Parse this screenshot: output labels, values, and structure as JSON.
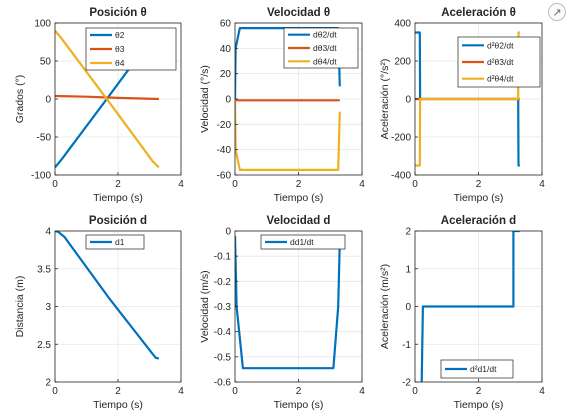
{
  "toolbar": {
    "export_icon": "export-arrow-icon",
    "export_glyph": "↗"
  },
  "colors": {
    "blue": "#0072BD",
    "orange": "#D95319",
    "yellow": "#EDB120",
    "axis": "#262626",
    "grid": "#e6e6e6"
  },
  "chart_data": [
    {
      "id": "pos-theta",
      "type": "line",
      "title": "Posición  θ",
      "xlabel": "Tiempo (s)",
      "ylabel": "Grados (°)",
      "xlim": [
        0,
        4
      ],
      "ylim": [
        -100,
        100
      ],
      "xticks": [
        0,
        2,
        4
      ],
      "yticks": [
        -100,
        -50,
        0,
        50,
        100
      ],
      "legend": "top-right",
      "series": [
        {
          "name": "θ2",
          "color": "#0072BD",
          "x": [
            0,
            0.2,
            1.7,
            3.1,
            3.3
          ],
          "y": [
            -90,
            -80,
            3,
            82,
            90
          ]
        },
        {
          "name": "θ3",
          "color": "#D95319",
          "x": [
            0,
            1,
            2,
            3.3
          ],
          "y": [
            4,
            3,
            1.5,
            0
          ]
        },
        {
          "name": "θ4",
          "color": "#EDB120",
          "x": [
            0,
            0.2,
            1.7,
            3.1,
            3.3
          ],
          "y": [
            90,
            80,
            -3,
            -82,
            -90
          ]
        }
      ]
    },
    {
      "id": "vel-theta",
      "type": "line",
      "title": "Velocidad  θ",
      "xlabel": "Tiempo (s)",
      "ylabel": "Velocidad (°/s)",
      "xlim": [
        0,
        4
      ],
      "ylim": [
        -60,
        60
      ],
      "xticks": [
        0,
        2,
        4
      ],
      "yticks": [
        -60,
        -40,
        -20,
        0,
        20,
        40,
        60
      ],
      "legend": "top-right",
      "series": [
        {
          "name": "dθ2/dt",
          "color": "#0072BD",
          "x": [
            0,
            0.02,
            0.15,
            3.25,
            3.3
          ],
          "y": [
            0,
            40,
            56,
            56,
            10
          ]
        },
        {
          "name": "dθ3/dt",
          "color": "#D95319",
          "x": [
            0,
            3.3
          ],
          "y": [
            -1,
            -1
          ]
        },
        {
          "name": "dθ4/dt",
          "color": "#EDB120",
          "x": [
            0,
            0.02,
            0.15,
            3.25,
            3.3
          ],
          "y": [
            0,
            -40,
            -56,
            -56,
            -10
          ]
        }
      ]
    },
    {
      "id": "acc-theta",
      "type": "line",
      "title": "Aceleración  θ",
      "xlabel": "Tiempo (s)",
      "ylabel": "Aceleración (°/s²)",
      "xlim": [
        0,
        4
      ],
      "ylim": [
        -400,
        400
      ],
      "xticks": [
        0,
        2,
        4
      ],
      "yticks": [
        -400,
        -200,
        0,
        200,
        400
      ],
      "legend": "top-right",
      "series": [
        {
          "name": "d²θ2/dt",
          "color": "#0072BD",
          "x": [
            0,
            0.15,
            0.16,
            3.25,
            3.26,
            3.3
          ],
          "y": [
            350,
            350,
            0,
            0,
            -350,
            -350
          ]
        },
        {
          "name": "d²θ3/dt",
          "color": "#D95319",
          "x": [
            0,
            3.3
          ],
          "y": [
            0,
            0
          ]
        },
        {
          "name": "d²θ4/dt",
          "color": "#EDB120",
          "x": [
            0,
            0.15,
            0.16,
            3.25,
            3.26,
            3.3
          ],
          "y": [
            -350,
            -350,
            0,
            0,
            350,
            350
          ]
        }
      ]
    },
    {
      "id": "pos-d",
      "type": "line",
      "title": "Posición d",
      "xlabel": "Tiempo (s)",
      "ylabel": "Distancia (m)",
      "xlim": [
        0,
        4
      ],
      "ylim": [
        2,
        4
      ],
      "xticks": [
        0,
        2,
        4
      ],
      "yticks": [
        2,
        2.5,
        3,
        3.5,
        4
      ],
      "legend": "top-right",
      "series": [
        {
          "name": "d1",
          "color": "#0072BD",
          "x": [
            0,
            0.1,
            0.3,
            1.7,
            3.1,
            3.2,
            3.3
          ],
          "y": [
            4,
            3.99,
            3.92,
            3.12,
            2.37,
            2.32,
            2.31
          ]
        }
      ]
    },
    {
      "id": "vel-d",
      "type": "line",
      "title": "Velocidad d",
      "xlabel": "Tiempo (s)",
      "ylabel": "Velocidad (m/s)",
      "xlim": [
        0,
        4
      ],
      "ylim": [
        -0.6,
        0
      ],
      "xticks": [
        0,
        2,
        4
      ],
      "yticks": [
        -0.6,
        -0.5,
        -0.4,
        -0.3,
        -0.2,
        -0.1,
        0
      ],
      "legend": "top-right",
      "series": [
        {
          "name": "dd1/dt",
          "color": "#0072BD",
          "x": [
            0,
            0.05,
            0.25,
            3.1,
            3.25,
            3.3
          ],
          "y": [
            -0.02,
            -0.3,
            -0.545,
            -0.545,
            -0.3,
            -0.04
          ]
        }
      ]
    },
    {
      "id": "acc-d",
      "type": "line",
      "title": "Aceleración d",
      "xlabel": "Tiempo (s)",
      "ylabel": "Aceleración (m/s²)",
      "xlim": [
        0,
        4
      ],
      "ylim": [
        -2,
        2
      ],
      "xticks": [
        0,
        2,
        4
      ],
      "yticks": [
        -2,
        -1,
        0,
        1,
        2
      ],
      "legend": "bottom-right",
      "series": [
        {
          "name": "d²d1/dt",
          "color": "#0072BD",
          "x": [
            0.2,
            0.2,
            0.25,
            3.1,
            3.1,
            3.15,
            3.3
          ],
          "y": [
            -2,
            -2.5,
            0,
            0,
            2,
            2,
            2
          ]
        }
      ]
    }
  ]
}
